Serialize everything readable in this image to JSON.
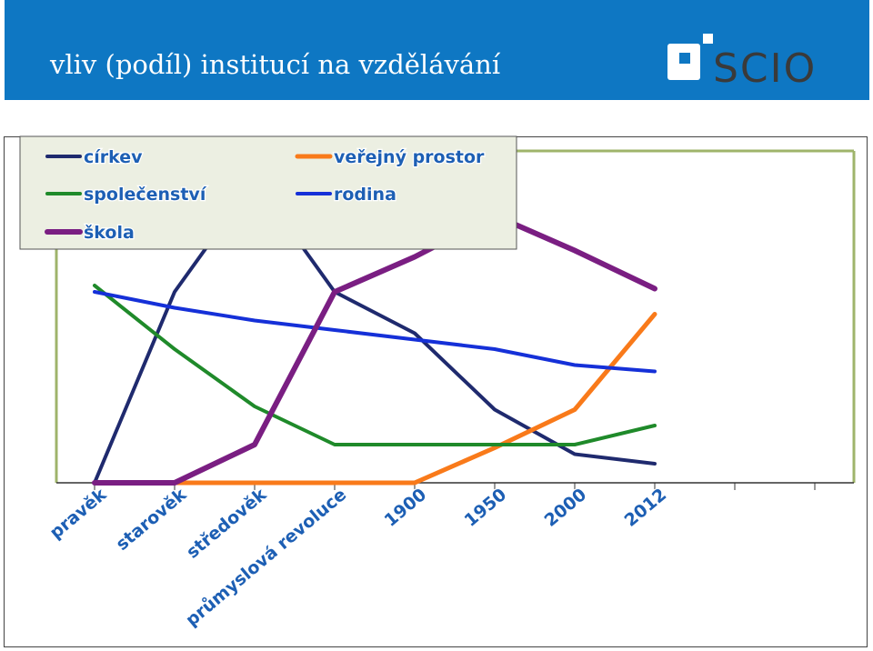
{
  "header": {
    "title": "vliv (podíl) institucí na vzdělávání",
    "logo_text": "SCIO",
    "bg_color": "#0e77c3"
  },
  "chart_data": {
    "type": "line",
    "title": "",
    "xlabel": "",
    "ylabel": "",
    "categories": [
      "pravěk",
      "starověk",
      "středověk",
      "průmyslová revoluce",
      "1900",
      "1950",
      "2000",
      "2012"
    ],
    "ylim": [
      0,
      100
    ],
    "grid": false,
    "legend": "top-left",
    "series": [
      {
        "name": "církev",
        "color": "#1f2a6e",
        "width": 4,
        "values": [
          0,
          60,
          95,
          60,
          47,
          23,
          9,
          6
        ]
      },
      {
        "name": "veřejný prostor",
        "color": "#f97a1a",
        "width": 5,
        "values": [
          0,
          0,
          0,
          0,
          0,
          11,
          23,
          53
        ]
      },
      {
        "name": "společenství",
        "color": "#1f8a2a",
        "width": 4,
        "values": [
          62,
          42,
          24,
          12,
          12,
          12,
          12,
          18
        ]
      },
      {
        "name": "rodina",
        "color": "#1530d8",
        "width": 4,
        "values": [
          60,
          55,
          51,
          48,
          45,
          42,
          37,
          35
        ]
      },
      {
        "name": "škola",
        "color": "#7a1e82",
        "width": 6,
        "values": [
          0,
          0,
          12,
          60,
          71,
          84,
          73,
          61
        ]
      }
    ]
  }
}
